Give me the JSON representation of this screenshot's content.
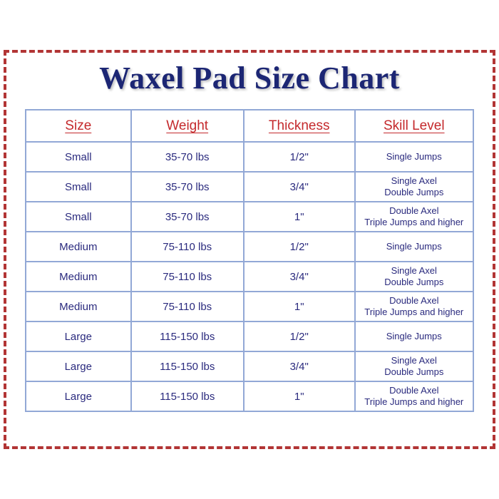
{
  "title": "Waxel Pad Size Chart",
  "colors": {
    "background": "#ffffff",
    "frame_dash_red": "#b23535",
    "title_navy": "#1c2674",
    "header_red": "#c4292c",
    "table_border_blue": "#92a8d6",
    "cell_text_navy": "#2a2a7e"
  },
  "table": {
    "headers": [
      "Size",
      "Weight",
      "Thickness",
      "Skill Level"
    ],
    "rows": [
      {
        "size": "Small",
        "weight": "35-70 lbs",
        "thickness": "1/2\"",
        "skill": "Single Jumps"
      },
      {
        "size": "Small",
        "weight": "35-70 lbs",
        "thickness": "3/4\"",
        "skill": "Single Axel\nDouble Jumps"
      },
      {
        "size": "Small",
        "weight": "35-70 lbs",
        "thickness": "1\"",
        "skill": "Double Axel\nTriple Jumps and higher"
      },
      {
        "size": "Medium",
        "weight": "75-110 lbs",
        "thickness": "1/2\"",
        "skill": "Single Jumps"
      },
      {
        "size": "Medium",
        "weight": "75-110 lbs",
        "thickness": "3/4\"",
        "skill": "Single Axel\nDouble Jumps"
      },
      {
        "size": "Medium",
        "weight": "75-110 lbs",
        "thickness": "1\"",
        "skill": "Double Axel\nTriple Jumps and higher"
      },
      {
        "size": "Large",
        "weight": "115-150 lbs",
        "thickness": "1/2\"",
        "skill": "Single Jumps"
      },
      {
        "size": "Large",
        "weight": "115-150 lbs",
        "thickness": "3/4\"",
        "skill": "Single Axel\nDouble Jumps"
      },
      {
        "size": "Large",
        "weight": "115-150 lbs",
        "thickness": "1\"",
        "skill": "Double Axel\nTriple Jumps and higher"
      }
    ]
  },
  "chart_data": {
    "type": "table",
    "title": "Waxel Pad Size Chart",
    "columns": [
      "Size",
      "Weight",
      "Thickness",
      "Skill Level"
    ],
    "rows": [
      [
        "Small",
        "35-70 lbs",
        "1/2\"",
        "Single Jumps"
      ],
      [
        "Small",
        "35-70 lbs",
        "3/4\"",
        "Single Axel\nDouble Jumps"
      ],
      [
        "Small",
        "35-70 lbs",
        "1\"",
        "Double Axel\nTriple Jumps and higher"
      ],
      [
        "Medium",
        "75-110 lbs",
        "1/2\"",
        "Single Jumps"
      ],
      [
        "Medium",
        "75-110 lbs",
        "3/4\"",
        "Single Axel\nDouble Jumps"
      ],
      [
        "Medium",
        "75-110 lbs",
        "1\"",
        "Double Axel\nTriple Jumps and higher"
      ],
      [
        "Large",
        "115-150 lbs",
        "1/2\"",
        "Single Jumps"
      ],
      [
        "Large",
        "115-150 lbs",
        "3/4\"",
        "Single Axel\nDouble Jumps"
      ],
      [
        "Large",
        "115-150 lbs",
        "1\"",
        "Double Axel\nTriple Jumps and higher"
      ]
    ]
  }
}
